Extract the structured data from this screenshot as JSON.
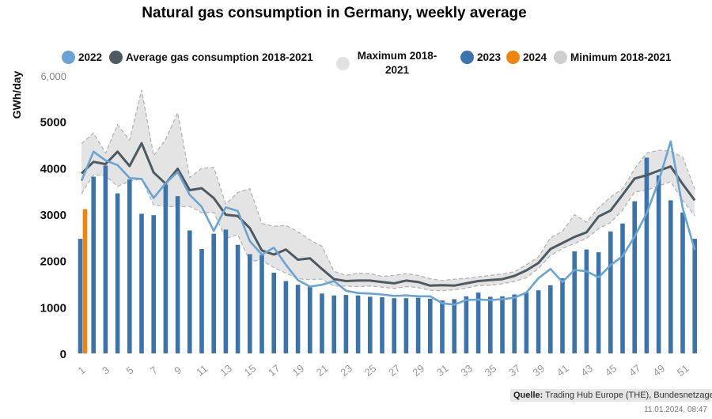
{
  "chart_data": {
    "type": "bar",
    "title": "Natural gas consumption in Germany, weekly average",
    "ylabel": "GWh/day",
    "xlabel": "",
    "ylim": [
      0,
      6000
    ],
    "yticks": [
      "0",
      "1000",
      "2000",
      "3000",
      "4000",
      "5000",
      "6,000"
    ],
    "xticks": [
      "1",
      "3",
      "5",
      "7",
      "9",
      "11",
      "13",
      "15",
      "17",
      "19",
      "21",
      "23",
      "25",
      "27",
      "29",
      "31",
      "33",
      "35",
      "37",
      "39",
      "41",
      "43",
      "45",
      "47",
      "49",
      "51"
    ],
    "weeks": [
      1,
      2,
      3,
      4,
      5,
      6,
      7,
      8,
      9,
      10,
      11,
      12,
      13,
      14,
      15,
      16,
      17,
      18,
      19,
      20,
      21,
      22,
      23,
      24,
      25,
      26,
      27,
      28,
      29,
      30,
      31,
      32,
      33,
      34,
      35,
      36,
      37,
      38,
      39,
      40,
      41,
      42,
      43,
      44,
      45,
      46,
      47,
      48,
      49,
      50,
      51,
      52
    ],
    "series": [
      {
        "name": "2023",
        "kind": "bar",
        "color": "#3b74ac",
        "values": [
          2470,
          3810,
          4050,
          3450,
          3750,
          3010,
          2980,
          3640,
          3390,
          2650,
          2250,
          2580,
          2670,
          2340,
          2140,
          2120,
          1740,
          1560,
          1480,
          1450,
          1290,
          1250,
          1260,
          1250,
          1220,
          1210,
          1190,
          1190,
          1200,
          1180,
          1140,
          1170,
          1230,
          1310,
          1220,
          1230,
          1270,
          1310,
          1360,
          1470,
          1620,
          2200,
          2240,
          2180,
          2630,
          2800,
          3280,
          4220,
          3840,
          3300,
          3040,
          2470
        ]
      },
      {
        "name": "2024",
        "kind": "bar",
        "color": "#f0850e",
        "values": [
          3110
        ]
      },
      {
        "name": "2022",
        "kind": "line",
        "color": "#6aa4d4",
        "values": [
          3720,
          4350,
          4160,
          4060,
          3780,
          3760,
          3350,
          3670,
          3910,
          3420,
          3160,
          2640,
          3150,
          3070,
          2420,
          2130,
          2280,
          1910,
          1580,
          1440,
          1480,
          1560,
          1350,
          1300,
          1290,
          1270,
          1240,
          1250,
          1230,
          1230,
          1080,
          1050,
          1150,
          1160,
          1150,
          1170,
          1200,
          1310,
          1620,
          1820,
          1540,
          1800,
          1770,
          1640,
          1900,
          2100,
          2520,
          3020,
          3710,
          4570,
          3130,
          2230
        ]
      },
      {
        "name": "Average gas consumption 2018-2021",
        "kind": "line",
        "color": "#4e5a60",
        "values": [
          3880,
          4130,
          4080,
          4350,
          4040,
          4530,
          3900,
          3660,
          3980,
          3520,
          3560,
          3350,
          2990,
          2960,
          2700,
          2220,
          2130,
          2240,
          2020,
          2050,
          1820,
          1600,
          1560,
          1570,
          1570,
          1540,
          1510,
          1570,
          1540,
          1460,
          1470,
          1460,
          1510,
          1560,
          1580,
          1600,
          1670,
          1790,
          1950,
          2250,
          2380,
          2510,
          2610,
          2950,
          3080,
          3420,
          3770,
          3840,
          3940,
          4030,
          3650,
          3300
        ]
      },
      {
        "name": "Maximum 2018-2021",
        "kind": "band-upper",
        "color": "#e2e2e2",
        "values": [
          4520,
          4750,
          4320,
          4930,
          4600,
          5680,
          4260,
          4610,
          5190,
          3790,
          3990,
          4010,
          3220,
          3470,
          3550,
          2800,
          2740,
          2760,
          2620,
          2450,
          2310,
          1770,
          1680,
          1730,
          1720,
          1660,
          1680,
          1720,
          1680,
          1610,
          1570,
          1600,
          1620,
          1650,
          1680,
          1710,
          1760,
          1910,
          2080,
          2490,
          2630,
          2990,
          2830,
          3140,
          3370,
          3550,
          3980,
          4320,
          4380,
          4360,
          4230,
          3540
        ]
      },
      {
        "name": "Minimum 2018-2021",
        "kind": "band-lower",
        "color": "#cfcfcf",
        "values": [
          3440,
          3850,
          3830,
          3600,
          3710,
          3760,
          3200,
          3170,
          3160,
          3170,
          3030,
          3040,
          2480,
          2560,
          1990,
          2010,
          1850,
          1730,
          1610,
          1590,
          1600,
          1450,
          1450,
          1440,
          1450,
          1430,
          1400,
          1440,
          1420,
          1360,
          1350,
          1370,
          1410,
          1460,
          1470,
          1500,
          1550,
          1630,
          1830,
          2110,
          2260,
          2370,
          2480,
          2690,
          2820,
          3090,
          3480,
          3520,
          3610,
          3700,
          3300,
          2970
        ]
      }
    ],
    "legend": [
      {
        "label": "2022",
        "color": "#6aa4d4"
      },
      {
        "label": "Average gas consumption 2018-2021",
        "color": "#4e5a60"
      },
      {
        "label": "Maximum 2018-2021",
        "color": "#e2e2e2"
      },
      {
        "label": "2023",
        "color": "#3b74ac"
      },
      {
        "label": "2024",
        "color": "#f0850e"
      },
      {
        "label": "Minimum 2018-2021",
        "color": "#cfcfcf"
      }
    ],
    "legend_position": "top"
  },
  "source": {
    "prefix": "Quelle:",
    "text": " Trading Hub Europe (THE), Bundesnetzagentur"
  },
  "timestamp": "11.01.2024, 08:47"
}
